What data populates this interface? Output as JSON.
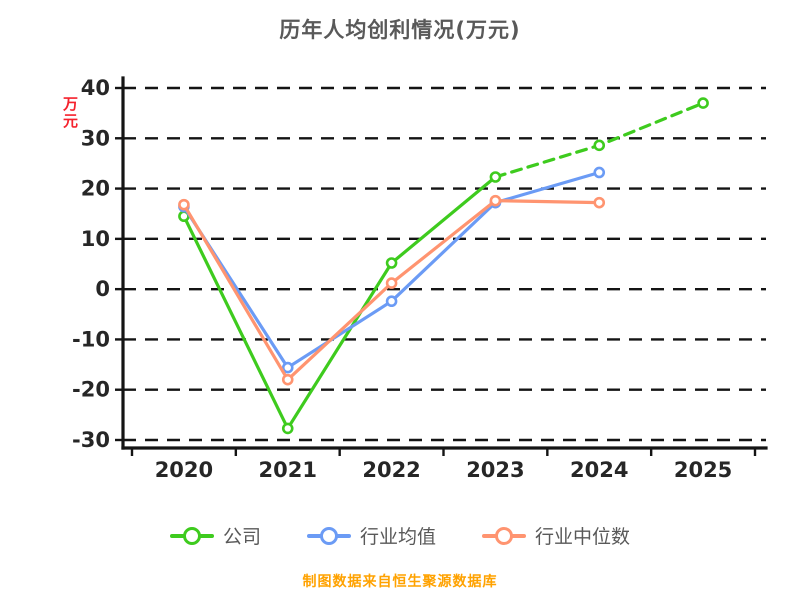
{
  "colors": {
    "title": "#595959",
    "ylabel_text": "#f5222d",
    "footer_text": "#ffa200",
    "axis": "#141414",
    "tick_label": "#262626",
    "legend_label": "#595959",
    "background": "#ffffff"
  },
  "footer": "制图数据来自恒生聚源数据库",
  "chart_data": {
    "type": "line",
    "title": "历年人均创利情况(万元)",
    "xlabel": "",
    "ylabel": "万元",
    "x": [
      "2020",
      "2021",
      "2022",
      "2023",
      "2024",
      "2025"
    ],
    "ylim": [
      -30,
      40
    ],
    "yticks": [
      40,
      30,
      20,
      10,
      0,
      -10,
      -20,
      -30
    ],
    "grid": true,
    "grid_style": "dashed",
    "legend_position": "bottom",
    "marker": "open-circle",
    "series": [
      {
        "name": "公司",
        "color": "#3ecb1e",
        "values": [
          14.5,
          -27.7,
          5.2,
          22.3,
          28.6,
          37.0
        ],
        "dash_from": 3
      },
      {
        "name": "行业均值",
        "color": "#6b9bf5",
        "values": [
          16.4,
          -15.6,
          -2.4,
          17.2,
          23.2,
          null
        ]
      },
      {
        "name": "行业中位数",
        "color": "#ff9470",
        "values": [
          16.8,
          -18.0,
          1.2,
          17.6,
          17.2,
          null
        ]
      }
    ]
  }
}
